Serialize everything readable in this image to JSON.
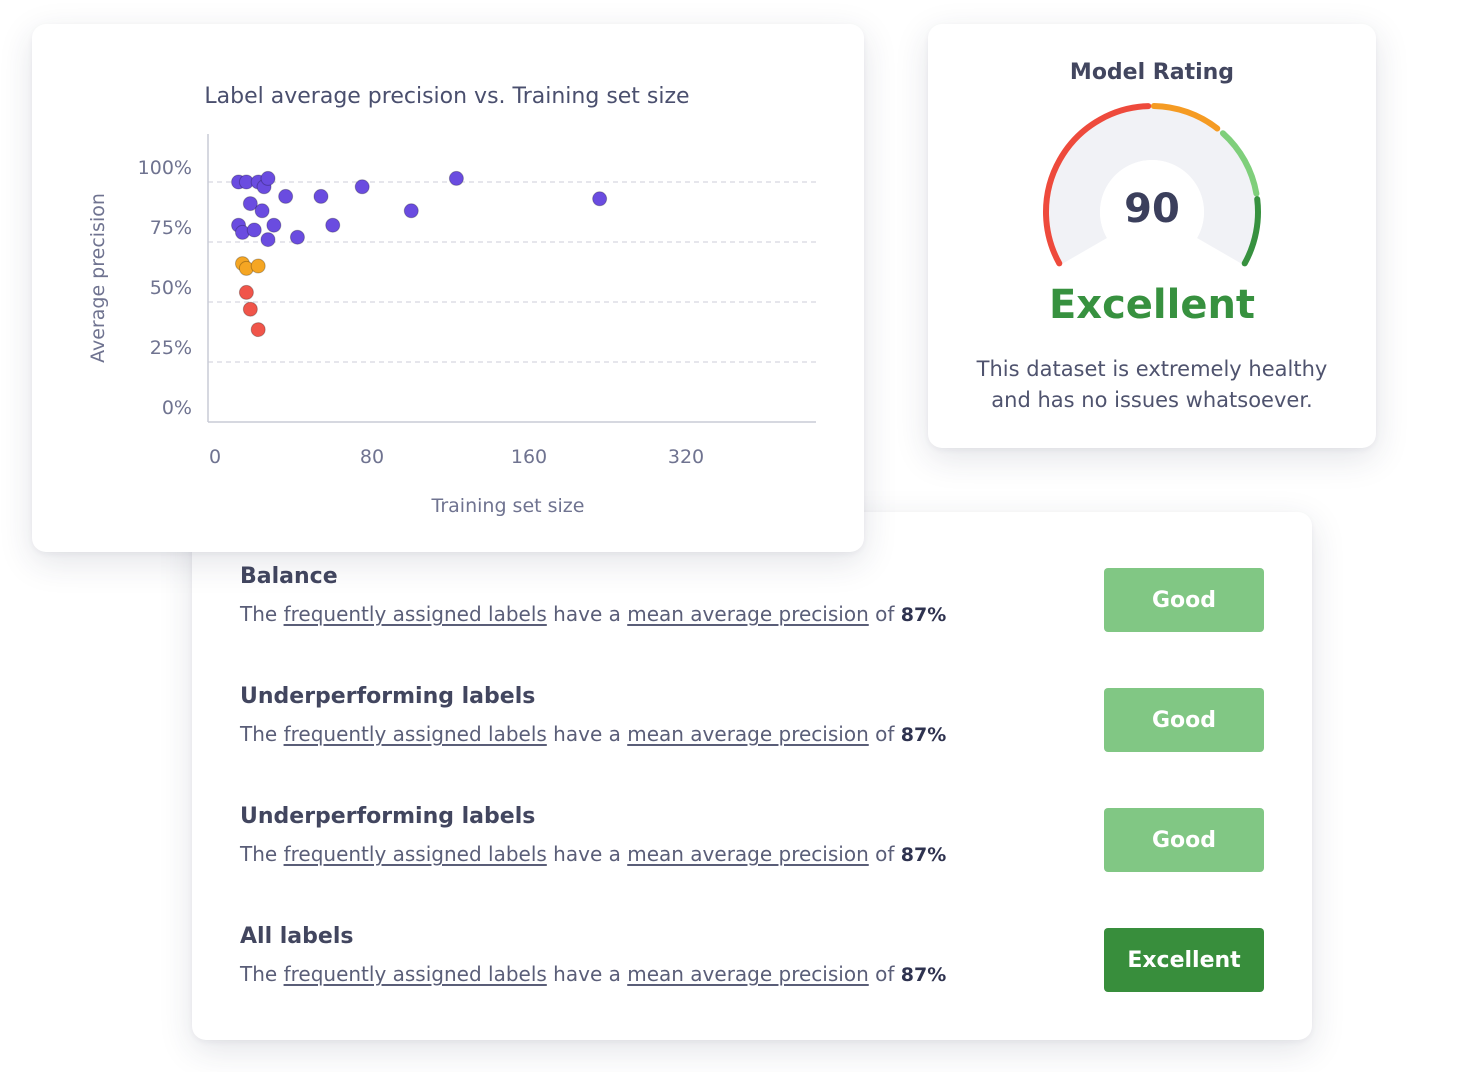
{
  "chart_card": {
    "title": "Label average precision vs. Training set size"
  },
  "chart_data": {
    "type": "scatter",
    "title": "Label average precision vs. Training set size",
    "xlabel": "Training set size",
    "ylabel": "Average precision",
    "x_ticks": [
      0,
      80,
      160,
      320
    ],
    "x_tick_labels": [
      "0",
      "80",
      "160",
      "320"
    ],
    "y_ticks": [
      0,
      25,
      50,
      75,
      100
    ],
    "y_tick_labels": [
      "0%",
      "25%",
      "50%",
      "75%",
      "100%"
    ],
    "ylim": [
      0,
      100
    ],
    "grid": true,
    "points": [
      {
        "x": 12,
        "y": 100,
        "color": "#6a4ce0"
      },
      {
        "x": 16,
        "y": 100,
        "color": "#6a4ce0"
      },
      {
        "x": 22,
        "y": 100,
        "color": "#6a4ce0"
      },
      {
        "x": 25,
        "y": 98,
        "color": "#6a4ce0"
      },
      {
        "x": 27,
        "y": 101.5,
        "color": "#6a4ce0"
      },
      {
        "x": 36,
        "y": 94,
        "color": "#6a4ce0"
      },
      {
        "x": 18,
        "y": 91,
        "color": "#6a4ce0"
      },
      {
        "x": 24,
        "y": 88,
        "color": "#6a4ce0"
      },
      {
        "x": 12,
        "y": 82,
        "color": "#6a4ce0"
      },
      {
        "x": 14,
        "y": 79,
        "color": "#6a4ce0"
      },
      {
        "x": 20,
        "y": 80,
        "color": "#6a4ce0"
      },
      {
        "x": 30,
        "y": 82,
        "color": "#6a4ce0"
      },
      {
        "x": 27,
        "y": 76,
        "color": "#6a4ce0"
      },
      {
        "x": 42,
        "y": 77,
        "color": "#6a4ce0"
      },
      {
        "x": 54,
        "y": 94,
        "color": "#6a4ce0"
      },
      {
        "x": 60,
        "y": 82,
        "color": "#6a4ce0"
      },
      {
        "x": 75,
        "y": 98,
        "color": "#6a4ce0"
      },
      {
        "x": 100,
        "y": 88,
        "color": "#6a4ce0"
      },
      {
        "x": 123,
        "y": 101.5,
        "color": "#6a4ce0"
      },
      {
        "x": 232,
        "y": 93,
        "color": "#6a4ce0"
      },
      {
        "x": 14,
        "y": 66,
        "color": "#f5a623"
      },
      {
        "x": 16,
        "y": 64,
        "color": "#f5a623"
      },
      {
        "x": 22,
        "y": 65,
        "color": "#f5a623"
      },
      {
        "x": 16,
        "y": 54,
        "color": "#f0554a"
      },
      {
        "x": 18,
        "y": 47,
        "color": "#f0554a"
      },
      {
        "x": 22,
        "y": 38.5,
        "color": "#f0554a"
      }
    ]
  },
  "rating_card": {
    "title": "Model Rating",
    "value": "90",
    "status": "Excellent",
    "status_color": "#37913f",
    "description": "This dataset is extremely healthy and has no issues whatsoever.",
    "gauge_colors": [
      "#ee4a3c",
      "#f59b23",
      "#7fcf7b",
      "#37913f"
    ]
  },
  "metrics": [
    {
      "title": "Balance",
      "prefix": "The",
      "link1": "frequently assigned labels",
      "middle": "have a",
      "link2": "mean average precision",
      "suffix": "of",
      "value": "87%",
      "badge": "Good"
    },
    {
      "title": "Underperforming labels",
      "prefix": "The",
      "link1": "frequently assigned labels",
      "middle": "have a",
      "link2": "mean average precision",
      "suffix": "of",
      "value": "87%",
      "badge": "Good"
    },
    {
      "title": "Underperforming labels",
      "prefix": "The",
      "link1": "frequently assigned labels",
      "middle": "have a",
      "link2": "mean average precision",
      "suffix": "of",
      "value": "87%",
      "badge": "Good"
    },
    {
      "title": "All labels",
      "prefix": "The",
      "link1": "frequently assigned labels",
      "middle": "have a",
      "link2": "mean average precision",
      "suffix": "of",
      "value": "87%",
      "badge": "Excellent"
    }
  ]
}
